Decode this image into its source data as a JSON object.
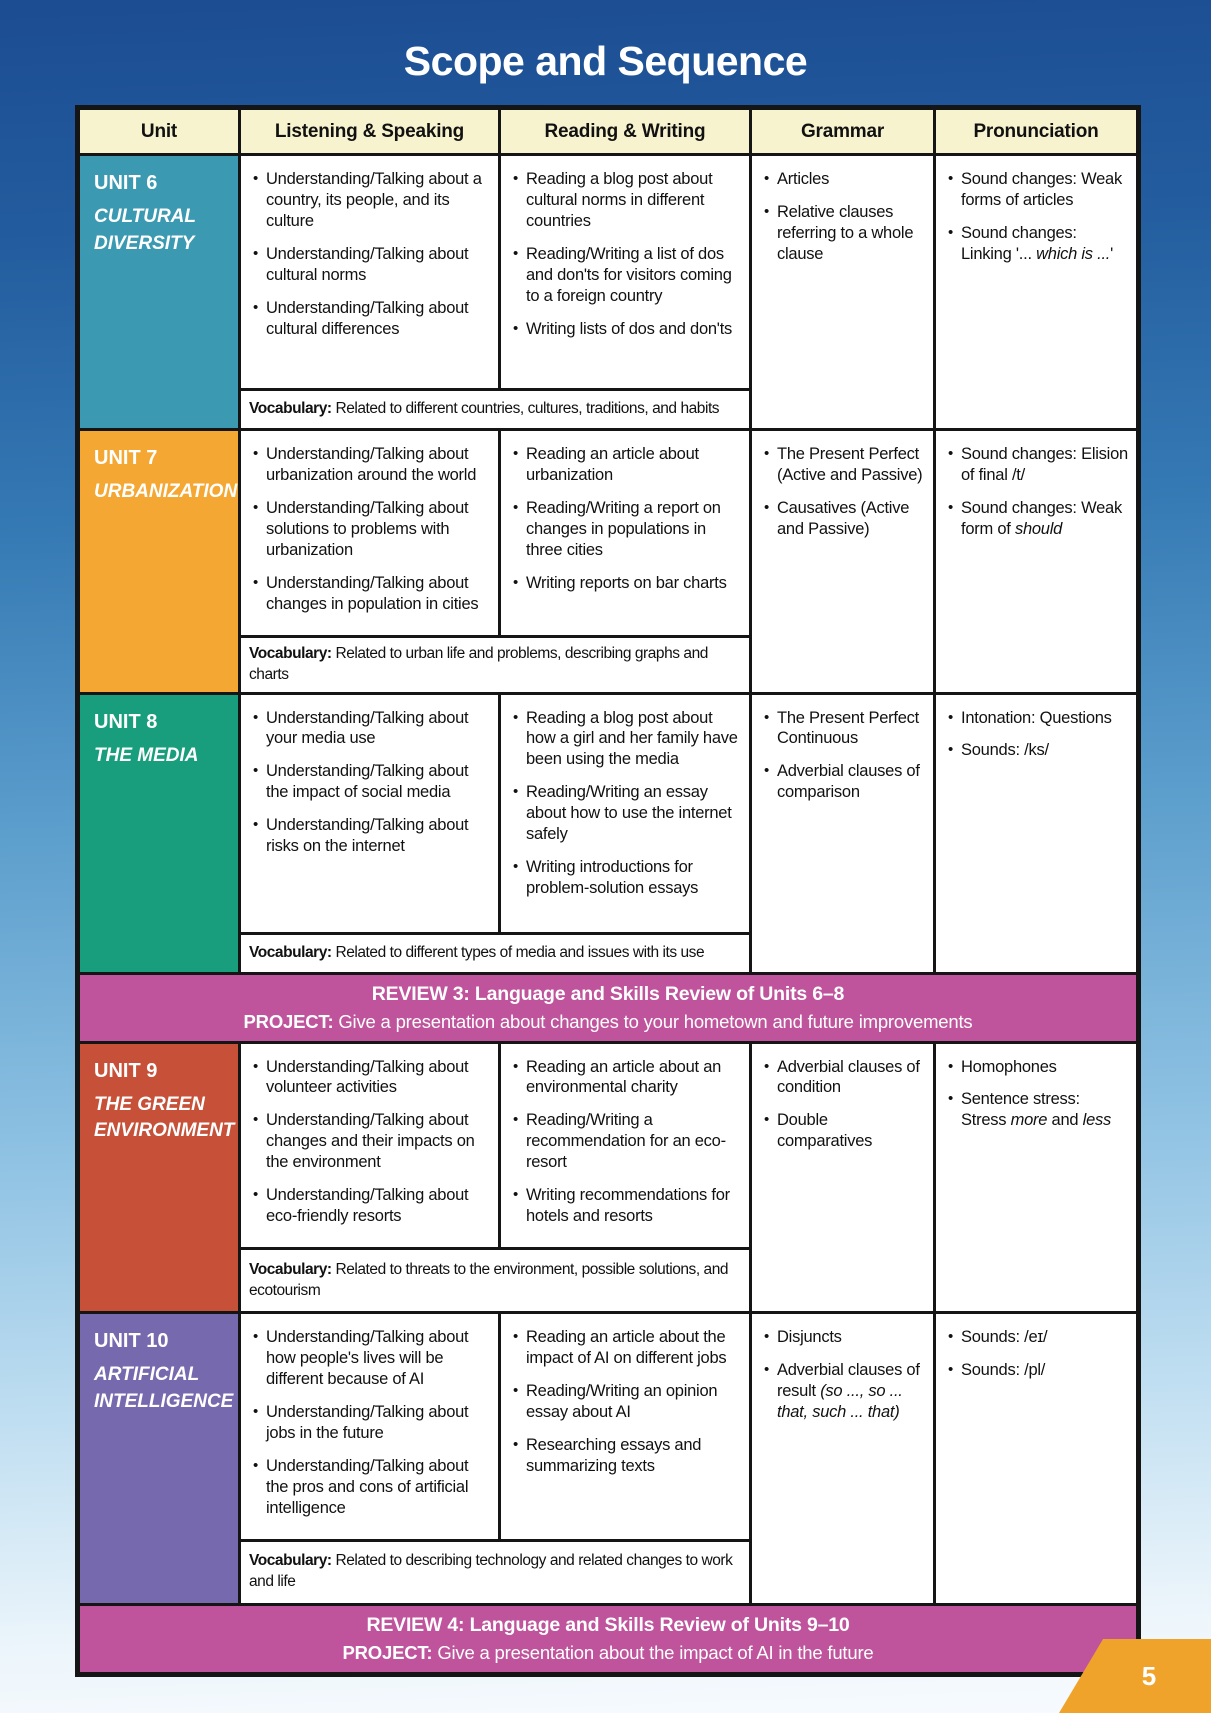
{
  "page": {
    "title": "Scope and Sequence",
    "page_number": "5"
  },
  "colors": {
    "header_bg": "#f7f3cf",
    "review_bg": "#bf549c",
    "page_tab": "#f0a32b",
    "border": "#151515"
  },
  "table": {
    "headers": [
      "Unit",
      "Listening & Speaking",
      "Reading & Writing",
      "Grammar",
      "Pronunciation"
    ],
    "vocab_label": "Vocabulary:",
    "units": [
      {
        "id": "unit-6",
        "number": "UNIT 6",
        "name": "CULTURAL DIVERSITY",
        "color": "#3b9ab1",
        "listening": [
          "Understanding/Talking about a country, its people, and its culture",
          "Understanding/Talking about cultural norms",
          "Understanding/Talking about cultural differences"
        ],
        "reading": [
          "Reading a blog post about cultural norms in different countries",
          "Reading/Writing a list of dos and don'ts for visitors coming to a foreign country",
          "Writing lists of dos and don'ts"
        ],
        "grammar": [
          "Articles",
          "Relative clauses referring to a whole clause"
        ],
        "pronunciation": [
          "Sound changes: Weak forms of articles",
          "Sound changes: Linking '... *which is ...*'"
        ],
        "vocabulary": "Related to different countries, cultures, traditions, and habits"
      },
      {
        "id": "unit-7",
        "number": "UNIT 7",
        "name": "URBANIZATION",
        "color": "#f5a733",
        "listening": [
          "Understanding/Talking about urbanization around the world",
          "Understanding/Talking about solutions to problems with urbanization",
          "Understanding/Talking about changes in population in cities"
        ],
        "reading": [
          "Reading an article about urbanization",
          "Reading/Writing a report on changes in populations in three cities",
          "Writing reports on bar charts"
        ],
        "grammar": [
          "The Present Perfect (Active and Passive)",
          "Causatives (Active and Passive)"
        ],
        "pronunciation": [
          "Sound changes: Elision of final /t/",
          "Sound changes: Weak form of *should*"
        ],
        "vocabulary": "Related to urban life and problems, describing graphs and charts"
      },
      {
        "id": "unit-8",
        "number": "UNIT 8",
        "name": "THE MEDIA",
        "color": "#189e7c",
        "listening": [
          "Understanding/Talking about your media use",
          "Understanding/Talking about the impact of social media",
          "Understanding/Talking about risks on the internet"
        ],
        "reading": [
          "Reading a blog post about how a girl and her family have been using the media",
          "Reading/Writing an essay about how to use the internet safely",
          "Writing introductions for problem-solution essays"
        ],
        "grammar": [
          "The Present Perfect Continuous",
          "Adverbial clauses of comparison"
        ],
        "pronunciation": [
          "Intonation: Questions",
          "Sounds: /ks/"
        ],
        "vocabulary": "Related to different types of media and issues with its use"
      },
      {
        "id": "unit-9",
        "number": "UNIT 9",
        "name": "THE GREEN ENVIRONMENT",
        "color": "#c65038",
        "listening": [
          "Understanding/Talking about volunteer activities",
          "Understanding/Talking about changes and their impacts on the environment",
          "Understanding/Talking about eco-friendly resorts"
        ],
        "reading": [
          "Reading an article about an environmental charity",
          "Reading/Writing a recommendation for an eco-resort",
          "Writing recommendations for hotels and resorts"
        ],
        "grammar": [
          "Adverbial clauses of condition",
          "Double comparatives"
        ],
        "pronunciation": [
          "Homophones",
          "Sentence stress: Stress *more* and *less*"
        ],
        "vocabulary": "Related to threats to the environment, possible solutions, and ecotourism"
      },
      {
        "id": "unit-10",
        "number": "UNIT 10",
        "name": "ARTIFICIAL INTELLIGENCE",
        "color": "#7669ae",
        "listening": [
          "Understanding/Talking about how people's lives will be different because of AI",
          "Understanding/Talking about jobs in the future",
          "Understanding/Talking about the pros and cons of artificial intelligence"
        ],
        "reading": [
          "Reading an article about the impact of AI on different jobs",
          "Reading/Writing an opinion essay about AI",
          "Researching essays and summarizing texts"
        ],
        "grammar": [
          "Disjuncts",
          "Adverbial clauses of result *(so ..., so ... that, such ... that)*"
        ],
        "pronunciation": [
          "Sounds: /eɪ/",
          "Sounds: /pl/"
        ],
        "vocabulary": "Related to describing technology and related changes to work and life"
      }
    ],
    "reviews": [
      {
        "title": "REVIEW 3: Language and Skills Review of Units 6–8",
        "project_label": "PROJECT:",
        "project_text": "Give a presentation about changes to your hometown and future improvements"
      },
      {
        "title": "REVIEW 4: Language and Skills Review of Units 9–10",
        "project_label": "PROJECT:",
        "project_text": "Give a presentation about the impact of AI in the future"
      }
    ]
  }
}
